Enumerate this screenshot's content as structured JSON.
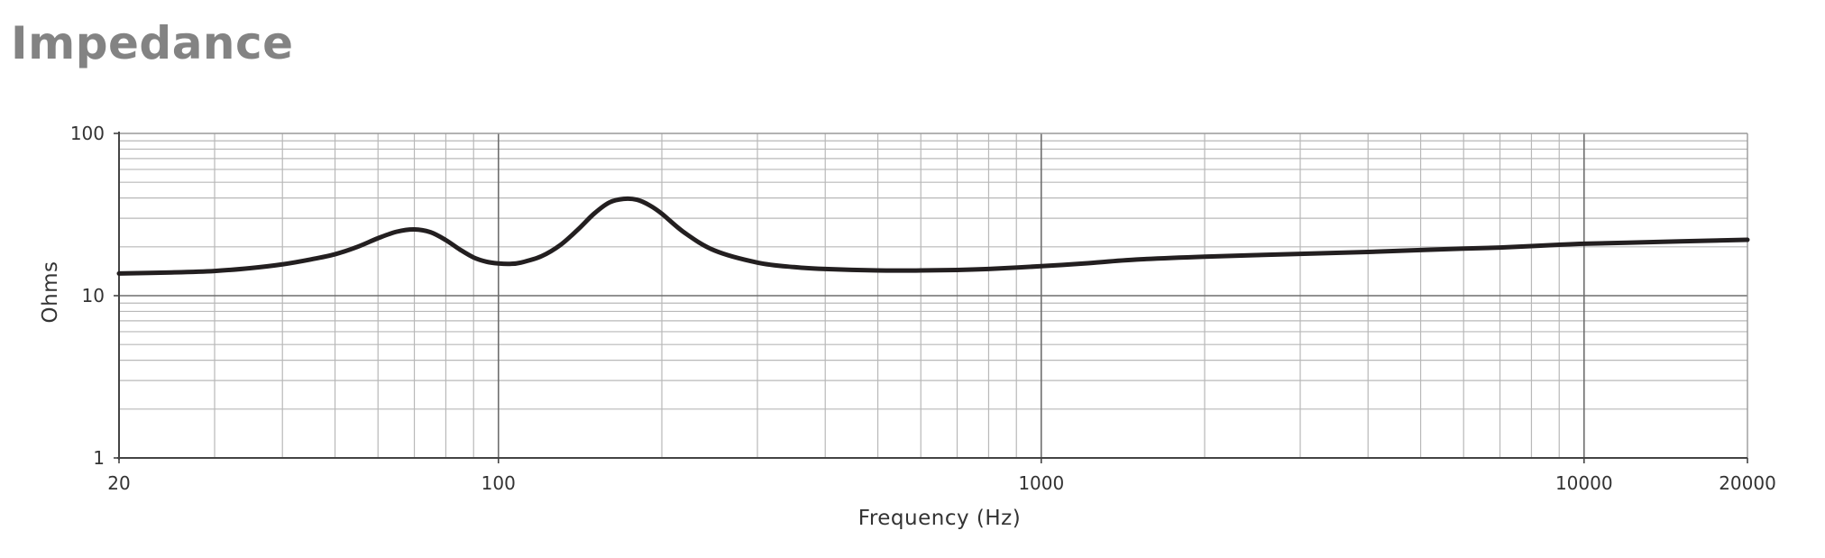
{
  "chart_data": {
    "type": "line",
    "title": "Impedance",
    "xlabel": "Frequency (Hz)",
    "ylabel": "Ohms",
    "xscale": "log",
    "yscale": "log",
    "xlim": [
      20,
      20000
    ],
    "ylim": [
      1,
      100
    ],
    "grid": true,
    "x_tick_labels": [
      "20",
      "100",
      "1000",
      "10000",
      "20000"
    ],
    "y_tick_labels": [
      "100",
      "10",
      "1"
    ],
    "series": [
      {
        "color": "#231f20",
        "x": [
          20,
          25,
          30,
          35,
          40,
          45,
          50,
          55,
          60,
          65,
          70,
          75,
          80,
          85,
          90,
          95,
          100,
          105,
          110,
          120,
          130,
          140,
          150,
          160,
          170,
          180,
          190,
          200,
          220,
          250,
          300,
          350,
          400,
          500,
          600,
          700,
          800,
          1000,
          1200,
          1500,
          2000,
          3000,
          4000,
          5000,
          6000,
          7000,
          8000,
          9000,
          10000,
          12000,
          15000,
          20000
        ],
        "y": [
          13.7,
          13.9,
          14.2,
          14.8,
          15.6,
          16.7,
          18.0,
          20.0,
          22.6,
          24.8,
          25.6,
          24.6,
          22.0,
          19.2,
          17.2,
          16.2,
          15.8,
          15.7,
          16.0,
          17.5,
          20.5,
          25.5,
          32.0,
          37.5,
          39.5,
          39.0,
          36.0,
          32.0,
          24.5,
          19.0,
          16.0,
          15.0,
          14.6,
          14.3,
          14.3,
          14.4,
          14.6,
          15.2,
          15.8,
          16.7,
          17.4,
          18.1,
          18.6,
          19.1,
          19.5,
          19.8,
          20.2,
          20.6,
          20.9,
          21.2,
          21.6,
          22.1
        ]
      }
    ]
  }
}
